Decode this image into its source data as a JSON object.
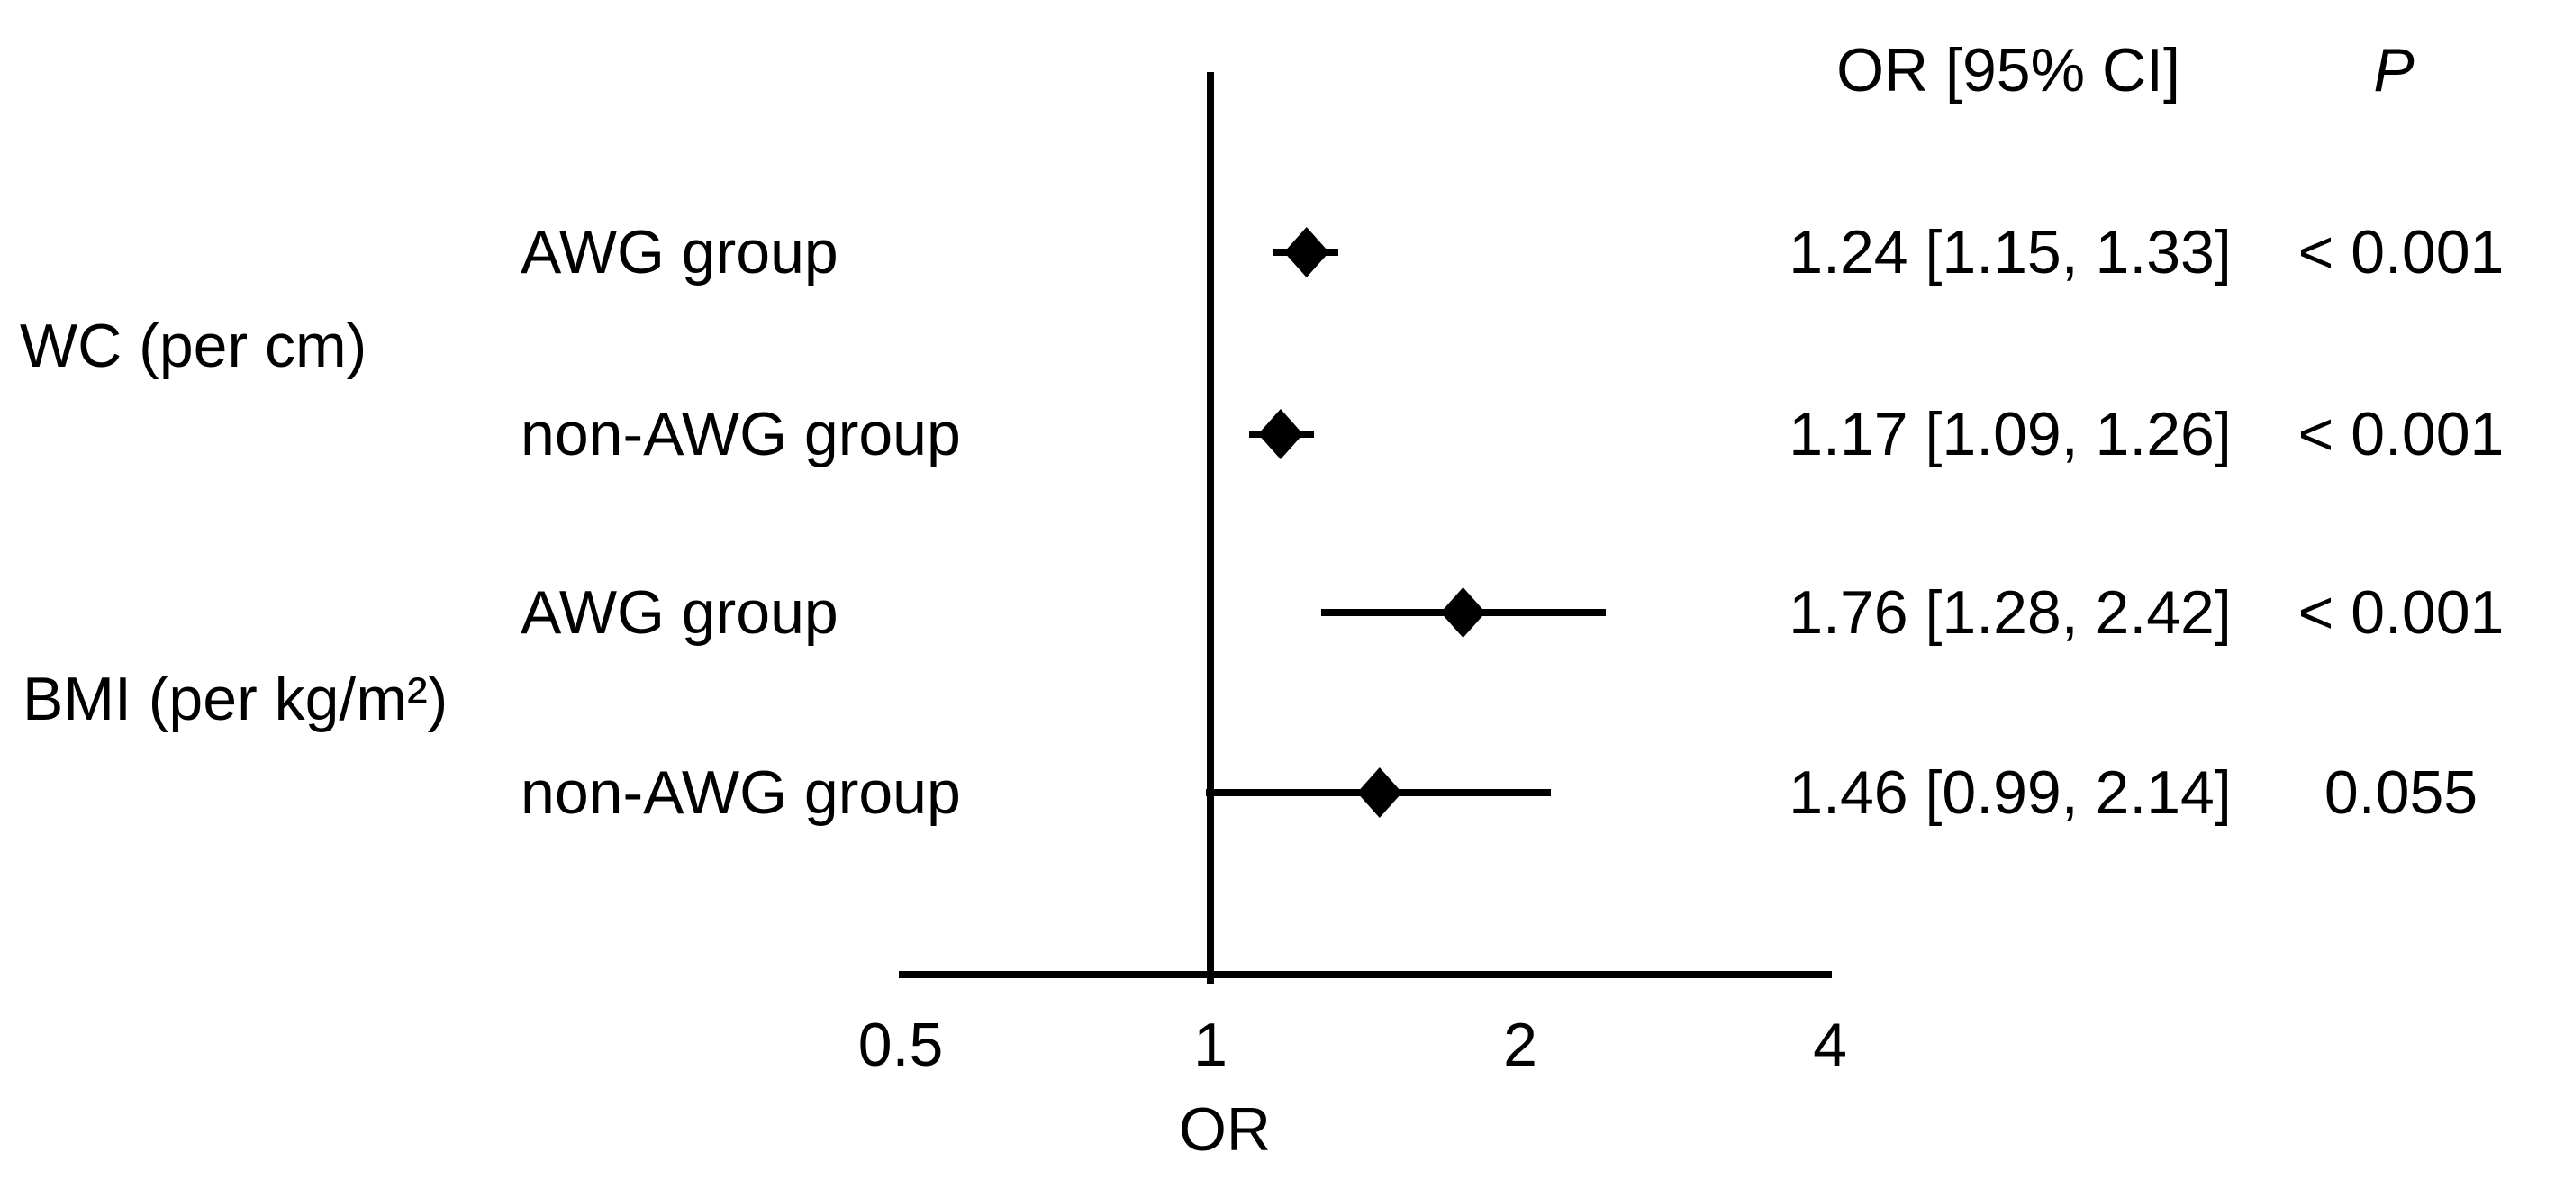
{
  "chart_data": {
    "type": "forest",
    "xlabel": "OR",
    "xscale": "log2",
    "xlim": [
      0.5,
      4
    ],
    "xticks": [
      0.5,
      1,
      2,
      4
    ],
    "xtick_labels": [
      "0.5",
      "1",
      "2",
      "4"
    ],
    "reference_line": 1,
    "grid": false,
    "columns": {
      "or_ci_header": "OR [95% CI]",
      "p_header": "P"
    },
    "groups": [
      {
        "label": "WC (per cm)"
      },
      {
        "label": "BMI (per kg/m²)"
      }
    ],
    "rows": [
      {
        "group": "WC (per cm)",
        "subgroup": "AWG group",
        "or": 1.24,
        "ci_low": 1.15,
        "ci_high": 1.33,
        "or_ci_text": "1.24 [1.15, 1.33]",
        "p_text": "< 0.001"
      },
      {
        "group": "WC (per cm)",
        "subgroup": "non-AWG group",
        "or": 1.17,
        "ci_low": 1.09,
        "ci_high": 1.26,
        "or_ci_text": "1.17 [1.09, 1.26]",
        "p_text": "< 0.001"
      },
      {
        "group": "BMI (per kg/m²)",
        "subgroup": "AWG group",
        "or": 1.76,
        "ci_low": 1.28,
        "ci_high": 2.42,
        "or_ci_text": "1.76 [1.28, 2.42]",
        "p_text": "< 0.001"
      },
      {
        "group": "BMI (per kg/m²)",
        "subgroup": "non-AWG group",
        "or": 1.46,
        "ci_low": 0.99,
        "ci_high": 2.14,
        "or_ci_text": "1.46 [0.99, 2.14]",
        "p_text": "0.055"
      }
    ],
    "colors": {
      "marker": "#000000",
      "line": "#000000",
      "text": "#000000",
      "background": "#ffffff"
    }
  }
}
